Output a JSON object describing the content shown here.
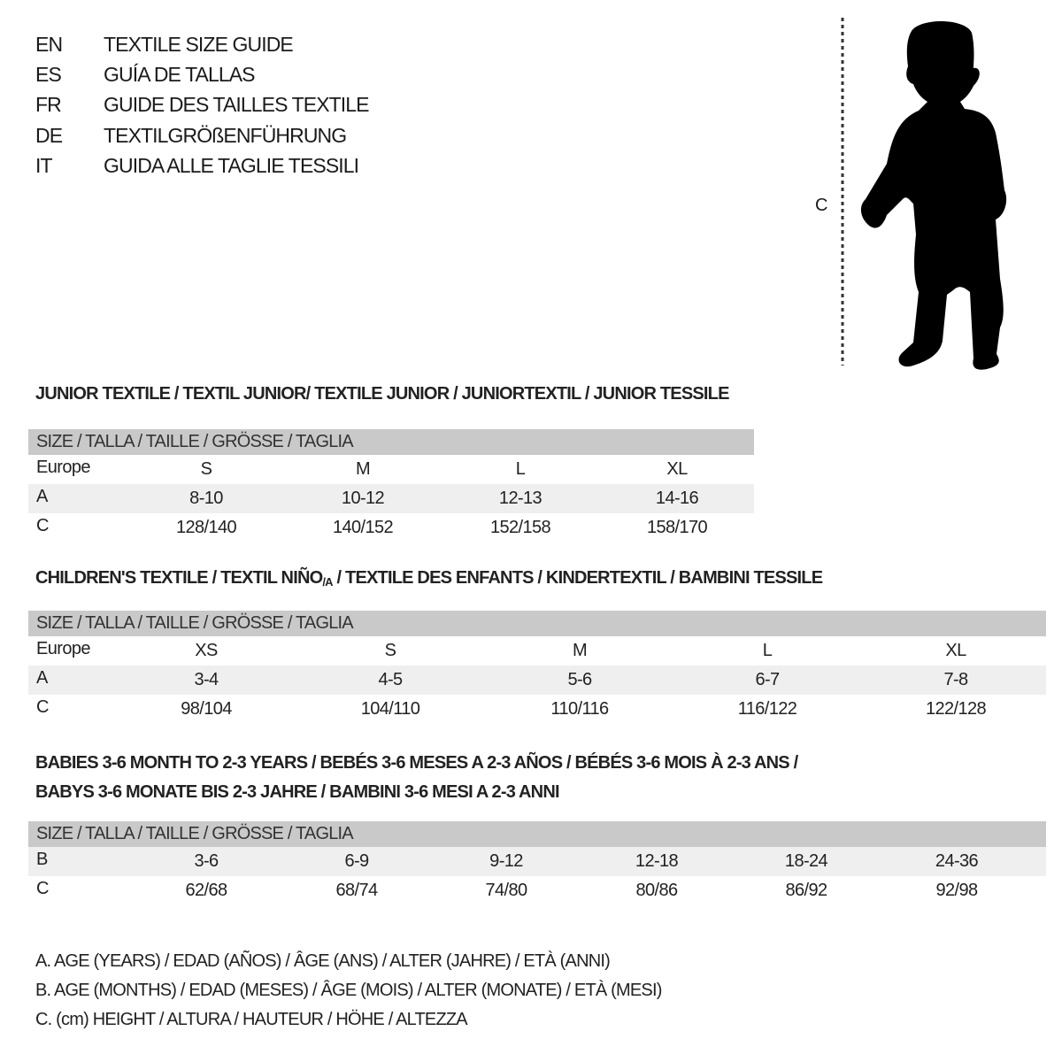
{
  "titles": [
    {
      "lang": "EN",
      "text": "TEXTILE SIZE GUIDE"
    },
    {
      "lang": "ES",
      "text": "GUÍA DE TALLAS"
    },
    {
      "lang": "FR",
      "text": "GUIDE DES TAILLES TEXTILE"
    },
    {
      "lang": "DE",
      "text": "TEXTILGRÖßENFÜHRUNG"
    },
    {
      "lang": "IT",
      "text": "GUIDA ALLE TAGLIE TESSILI"
    }
  ],
  "figure": {
    "measure_label": "C",
    "icon": "child-silhouette-icon"
  },
  "colors": {
    "header_bar": "#c9c9c9",
    "shaded_row": "#efefef"
  },
  "sections": [
    {
      "title": "JUNIOR TEXTILE / TEXTIL JUNIOR/ TEXTILE JUNIOR / JUNIORTEXTIL / JUNIOR TESSILE",
      "header": "SIZE / TALLA / TAILLE / GRÖSSE / TAGLIA",
      "rows": [
        {
          "label": "Europe",
          "values": [
            "S",
            "M",
            "L",
            "XL"
          ]
        },
        {
          "label": "A",
          "values": [
            "8-10",
            "10-12",
            "12-13",
            "14-16"
          ]
        },
        {
          "label": "C",
          "values": [
            "128/140",
            "140/152",
            "152/158",
            "158/170"
          ]
        }
      ]
    },
    {
      "title_main": "CHILDREN'S TEXTILE / TEXTIL NIÑO",
      "title_sub": "/A",
      "title_rest": " / TEXTILE DES ENFANTS / KINDERTEXTIL / BAMBINI TESSILE",
      "header": "SIZE / TALLA / TAILLE / GRÖSSE / TAGLIA",
      "rows": [
        {
          "label": "Europe",
          "values": [
            "XS",
            "S",
            "M",
            "L",
            "XL"
          ]
        },
        {
          "label": "A",
          "values": [
            "3-4",
            "4-5",
            "5-6",
            "6-7",
            "7-8"
          ]
        },
        {
          "label": "C",
          "values": [
            "98/104",
            "104/110",
            "110/116",
            "116/122",
            "122/128"
          ]
        }
      ]
    },
    {
      "title_line1": "BABIES 3-6 MONTH TO 2-3 YEARS / BEBÉS 3-6 MESES A 2-3 AÑOS / BÉBÉS 3-6 MOIS À 2-3 ANS /",
      "title_line2": "BABYS 3-6 MONATE BIS 2-3 JAHRE / BAMBINI 3-6 MESI A 2-3 ANNI",
      "header": "SIZE / TALLA / TAILLE / GRÖSSE / TAGLIA",
      "rows": [
        {
          "label": "B",
          "values": [
            "3-6",
            "6-9",
            "9-12",
            "12-18",
            "18-24",
            "24-36"
          ]
        },
        {
          "label": "C",
          "values": [
            "62/68",
            "68/74",
            "74/80",
            "80/86",
            "86/92",
            "92/98"
          ]
        }
      ]
    }
  ],
  "legend": [
    "A. AGE (YEARS) / EDAD (AÑOS) / ÂGE (ANS) / ALTER (JAHRE) / ETÀ (ANNI)",
    "B. AGE (MONTHS) / EDAD (MESES) / ÂGE (MOIS) / ALTER (MONATE) / ETÀ (MESI)",
    "C. (cm) HEIGHT / ALTURA / HAUTEUR / HÖHE / ALTEZZA"
  ]
}
